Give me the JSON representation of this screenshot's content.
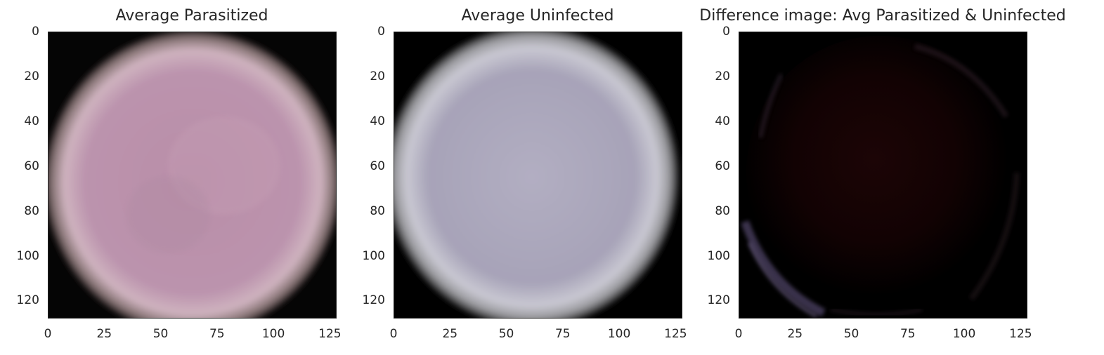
{
  "chart_data": [
    {
      "type": "heatmap",
      "title": "Average Parasitized",
      "xlabel": "",
      "ylabel": "",
      "xlim": [
        0,
        128
      ],
      "ylim": [
        128,
        0
      ],
      "xticks": [
        0,
        25,
        50,
        75,
        100,
        125
      ],
      "yticks": [
        0,
        20,
        40,
        60,
        80,
        100,
        120
      ],
      "grid": false,
      "image": {
        "content": "average cell image",
        "center_color": "#b98ea8",
        "edge_color": "#f0ece6",
        "background_color": "#000000"
      }
    },
    {
      "type": "heatmap",
      "title": "Average Uninfected",
      "xlabel": "",
      "ylabel": "",
      "xlim": [
        0,
        128
      ],
      "ylim": [
        128,
        0
      ],
      "xticks": [
        0,
        25,
        50,
        75,
        100,
        125
      ],
      "yticks": [
        0,
        20,
        40,
        60,
        80,
        100,
        120
      ],
      "grid": false,
      "image": {
        "content": "average cell image",
        "center_color": "#aaa6bb",
        "edge_color": "#f2f2f2",
        "background_color": "#000000"
      }
    },
    {
      "type": "heatmap",
      "title": "Difference image: Avg Parasitized & Uninfected",
      "xlabel": "",
      "ylabel": "",
      "xlim": [
        0,
        128
      ],
      "ylim": [
        128,
        0
      ],
      "xticks": [
        0,
        25,
        50,
        75,
        100,
        125
      ],
      "yticks": [
        0,
        20,
        40,
        60,
        80,
        100,
        120
      ],
      "grid": false,
      "image": {
        "content": "difference image",
        "center_color": "#1a0404",
        "edge_color": "#7b6a9a",
        "background_color": "#000000"
      }
    }
  ]
}
